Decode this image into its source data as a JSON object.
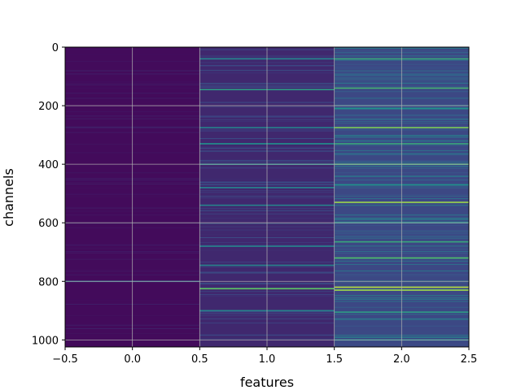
{
  "chart_data": {
    "type": "heatmap",
    "title": "",
    "xlabel": "features",
    "ylabel": "channels",
    "xlim": [
      -0.5,
      2.5
    ],
    "ylim": [
      1024,
      0
    ],
    "y_inverted": true,
    "grid": true,
    "colormap": "viridis",
    "columns": [
      0,
      1,
      2
    ],
    "rows": 1024,
    "x_ticks": [
      -0.5,
      0.0,
      0.5,
      1.0,
      1.5,
      2.0,
      2.5
    ],
    "x_tick_labels": [
      "−0.5",
      "0.0",
      "0.5",
      "1.0",
      "1.5",
      "2.0",
      "2.5"
    ],
    "y_ticks": [
      0,
      200,
      400,
      600,
      800,
      1000
    ],
    "y_tick_labels": [
      "0",
      "200",
      "400",
      "600",
      "800",
      "1000"
    ],
    "column_base_values": [
      0.03,
      0.12,
      0.22
    ],
    "highlight_rows": [
      {
        "column": 0,
        "row": 800,
        "value": 0.35
      },
      {
        "column": 1,
        "row": 40,
        "value": 0.45
      },
      {
        "column": 1,
        "row": 145,
        "value": 0.55
      },
      {
        "column": 1,
        "row": 275,
        "value": 0.45
      },
      {
        "column": 1,
        "row": 330,
        "value": 0.5
      },
      {
        "column": 1,
        "row": 400,
        "value": 0.5
      },
      {
        "column": 1,
        "row": 480,
        "value": 0.45
      },
      {
        "column": 1,
        "row": 540,
        "value": 0.45
      },
      {
        "column": 1,
        "row": 680,
        "value": 0.45
      },
      {
        "column": 1,
        "row": 745,
        "value": 0.45
      },
      {
        "column": 1,
        "row": 825,
        "value": 0.75
      },
      {
        "column": 1,
        "row": 900,
        "value": 0.45
      },
      {
        "column": 2,
        "row": 40,
        "value": 0.6
      },
      {
        "column": 2,
        "row": 140,
        "value": 0.65
      },
      {
        "column": 2,
        "row": 210,
        "value": 0.5
      },
      {
        "column": 2,
        "row": 275,
        "value": 0.8
      },
      {
        "column": 2,
        "row": 330,
        "value": 0.6
      },
      {
        "column": 2,
        "row": 400,
        "value": 0.65
      },
      {
        "column": 2,
        "row": 470,
        "value": 0.5
      },
      {
        "column": 2,
        "row": 530,
        "value": 0.85
      },
      {
        "column": 2,
        "row": 600,
        "value": 0.5
      },
      {
        "column": 2,
        "row": 665,
        "value": 0.6
      },
      {
        "column": 2,
        "row": 720,
        "value": 0.7
      },
      {
        "column": 2,
        "row": 820,
        "value": 0.9
      },
      {
        "column": 2,
        "row": 830,
        "value": 0.85
      },
      {
        "column": 2,
        "row": 905,
        "value": 0.55
      },
      {
        "column": 2,
        "row": 1000,
        "value": 0.5
      }
    ]
  }
}
